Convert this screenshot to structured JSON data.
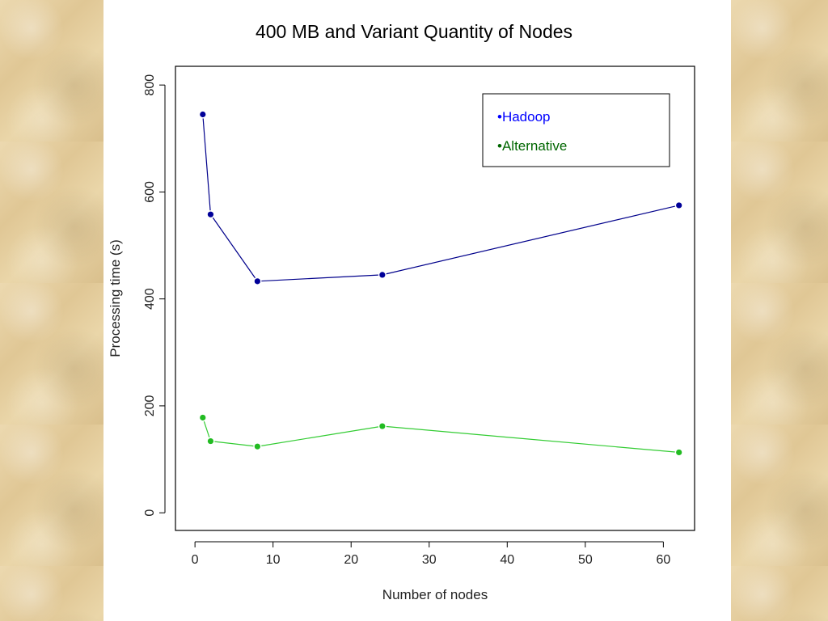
{
  "chart_data": {
    "type": "line",
    "title": "400 MB and Variant Quantity of Nodes",
    "xlabel": "Number of nodes",
    "ylabel": "Processing time (s)",
    "xlim": [
      -2.5,
      64
    ],
    "ylim": [
      -33,
      835
    ],
    "xticks": [
      0,
      10,
      20,
      30,
      40,
      50,
      60
    ],
    "yticks": [
      0,
      200,
      400,
      600,
      800
    ],
    "legend_position": "top-right",
    "series": [
      {
        "name": "•Hadoop",
        "color": "#00008b",
        "point_color": "#000099",
        "legend_color": "#0000ff",
        "x": [
          1,
          2,
          8,
          24,
          62
        ],
        "y": [
          745,
          558,
          433,
          445,
          575
        ]
      },
      {
        "name": "•Alternative",
        "color": "#33cc33",
        "point_color": "#22bb22",
        "legend_color": "#006600",
        "x": [
          1,
          2,
          8,
          24,
          62
        ],
        "y": [
          178,
          134,
          124,
          162,
          113
        ]
      }
    ]
  }
}
